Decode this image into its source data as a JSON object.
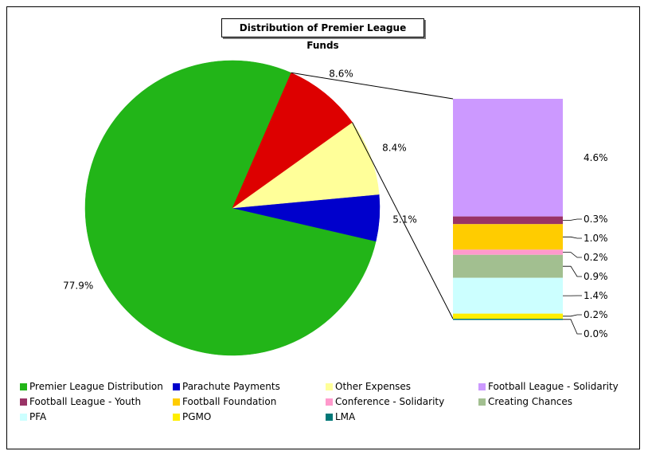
{
  "chart_data": {
    "type": "pie",
    "title": "Distribution of Premier League Funds",
    "slices": [
      {
        "name": "Premier League Distribution",
        "value": 77.9,
        "label": "77.9%",
        "color": "#22b518"
      },
      {
        "name": "Parachute Payments",
        "value": 5.1,
        "label": "5.1%",
        "color": "#0000cc"
      },
      {
        "name": "Other Expenses",
        "value": 8.4,
        "label": "8.4%",
        "color": "#ffff99"
      },
      {
        "name": "Other",
        "value": 8.6,
        "label": "8.6%",
        "color": "#dd0000"
      }
    ],
    "breakdown": {
      "of_slice": "Other",
      "items": [
        {
          "name": "Football League - Solidarity",
          "value": 4.6,
          "label": "4.6%",
          "color": "#cc99ff"
        },
        {
          "name": "Football League - Youth",
          "value": 0.3,
          "label": "0.3%",
          "color": "#993366"
        },
        {
          "name": "Football Foundation",
          "value": 1.0,
          "label": "1.0%",
          "color": "#ffcc00"
        },
        {
          "name": "Conference - Solidarity",
          "value": 0.2,
          "label": "0.2%",
          "color": "#ff99cc"
        },
        {
          "name": "Creating Chances",
          "value": 0.9,
          "label": "0.9%",
          "color": "#a2bf90"
        },
        {
          "name": "PFA",
          "value": 1.4,
          "label": "1.4%",
          "color": "#ccffff"
        },
        {
          "name": "PGMO",
          "value": 0.2,
          "label": "0.2%",
          "color": "#ffee00"
        },
        {
          "name": "LMA",
          "value": 0.0,
          "label": "0.0%",
          "color": "#007777"
        }
      ]
    },
    "legend": [
      {
        "name": "Premier League Distribution",
        "color": "#22b518"
      },
      {
        "name": "Parachute Payments",
        "color": "#0000cc"
      },
      {
        "name": "Other Expenses",
        "color": "#ffff99"
      },
      {
        "name": "Football League - Solidarity",
        "color": "#cc99ff"
      },
      {
        "name": "Football League - Youth",
        "color": "#993366"
      },
      {
        "name": "Football Foundation",
        "color": "#ffcc00"
      },
      {
        "name": "Conference - Solidarity",
        "color": "#ff99cc"
      },
      {
        "name": "Creating Chances",
        "color": "#a2bf90"
      },
      {
        "name": "PFA",
        "color": "#ccffff"
      },
      {
        "name": "PGMO",
        "color": "#ffee00"
      },
      {
        "name": "LMA",
        "color": "#007777"
      }
    ],
    "legend_placement": "bottom"
  }
}
